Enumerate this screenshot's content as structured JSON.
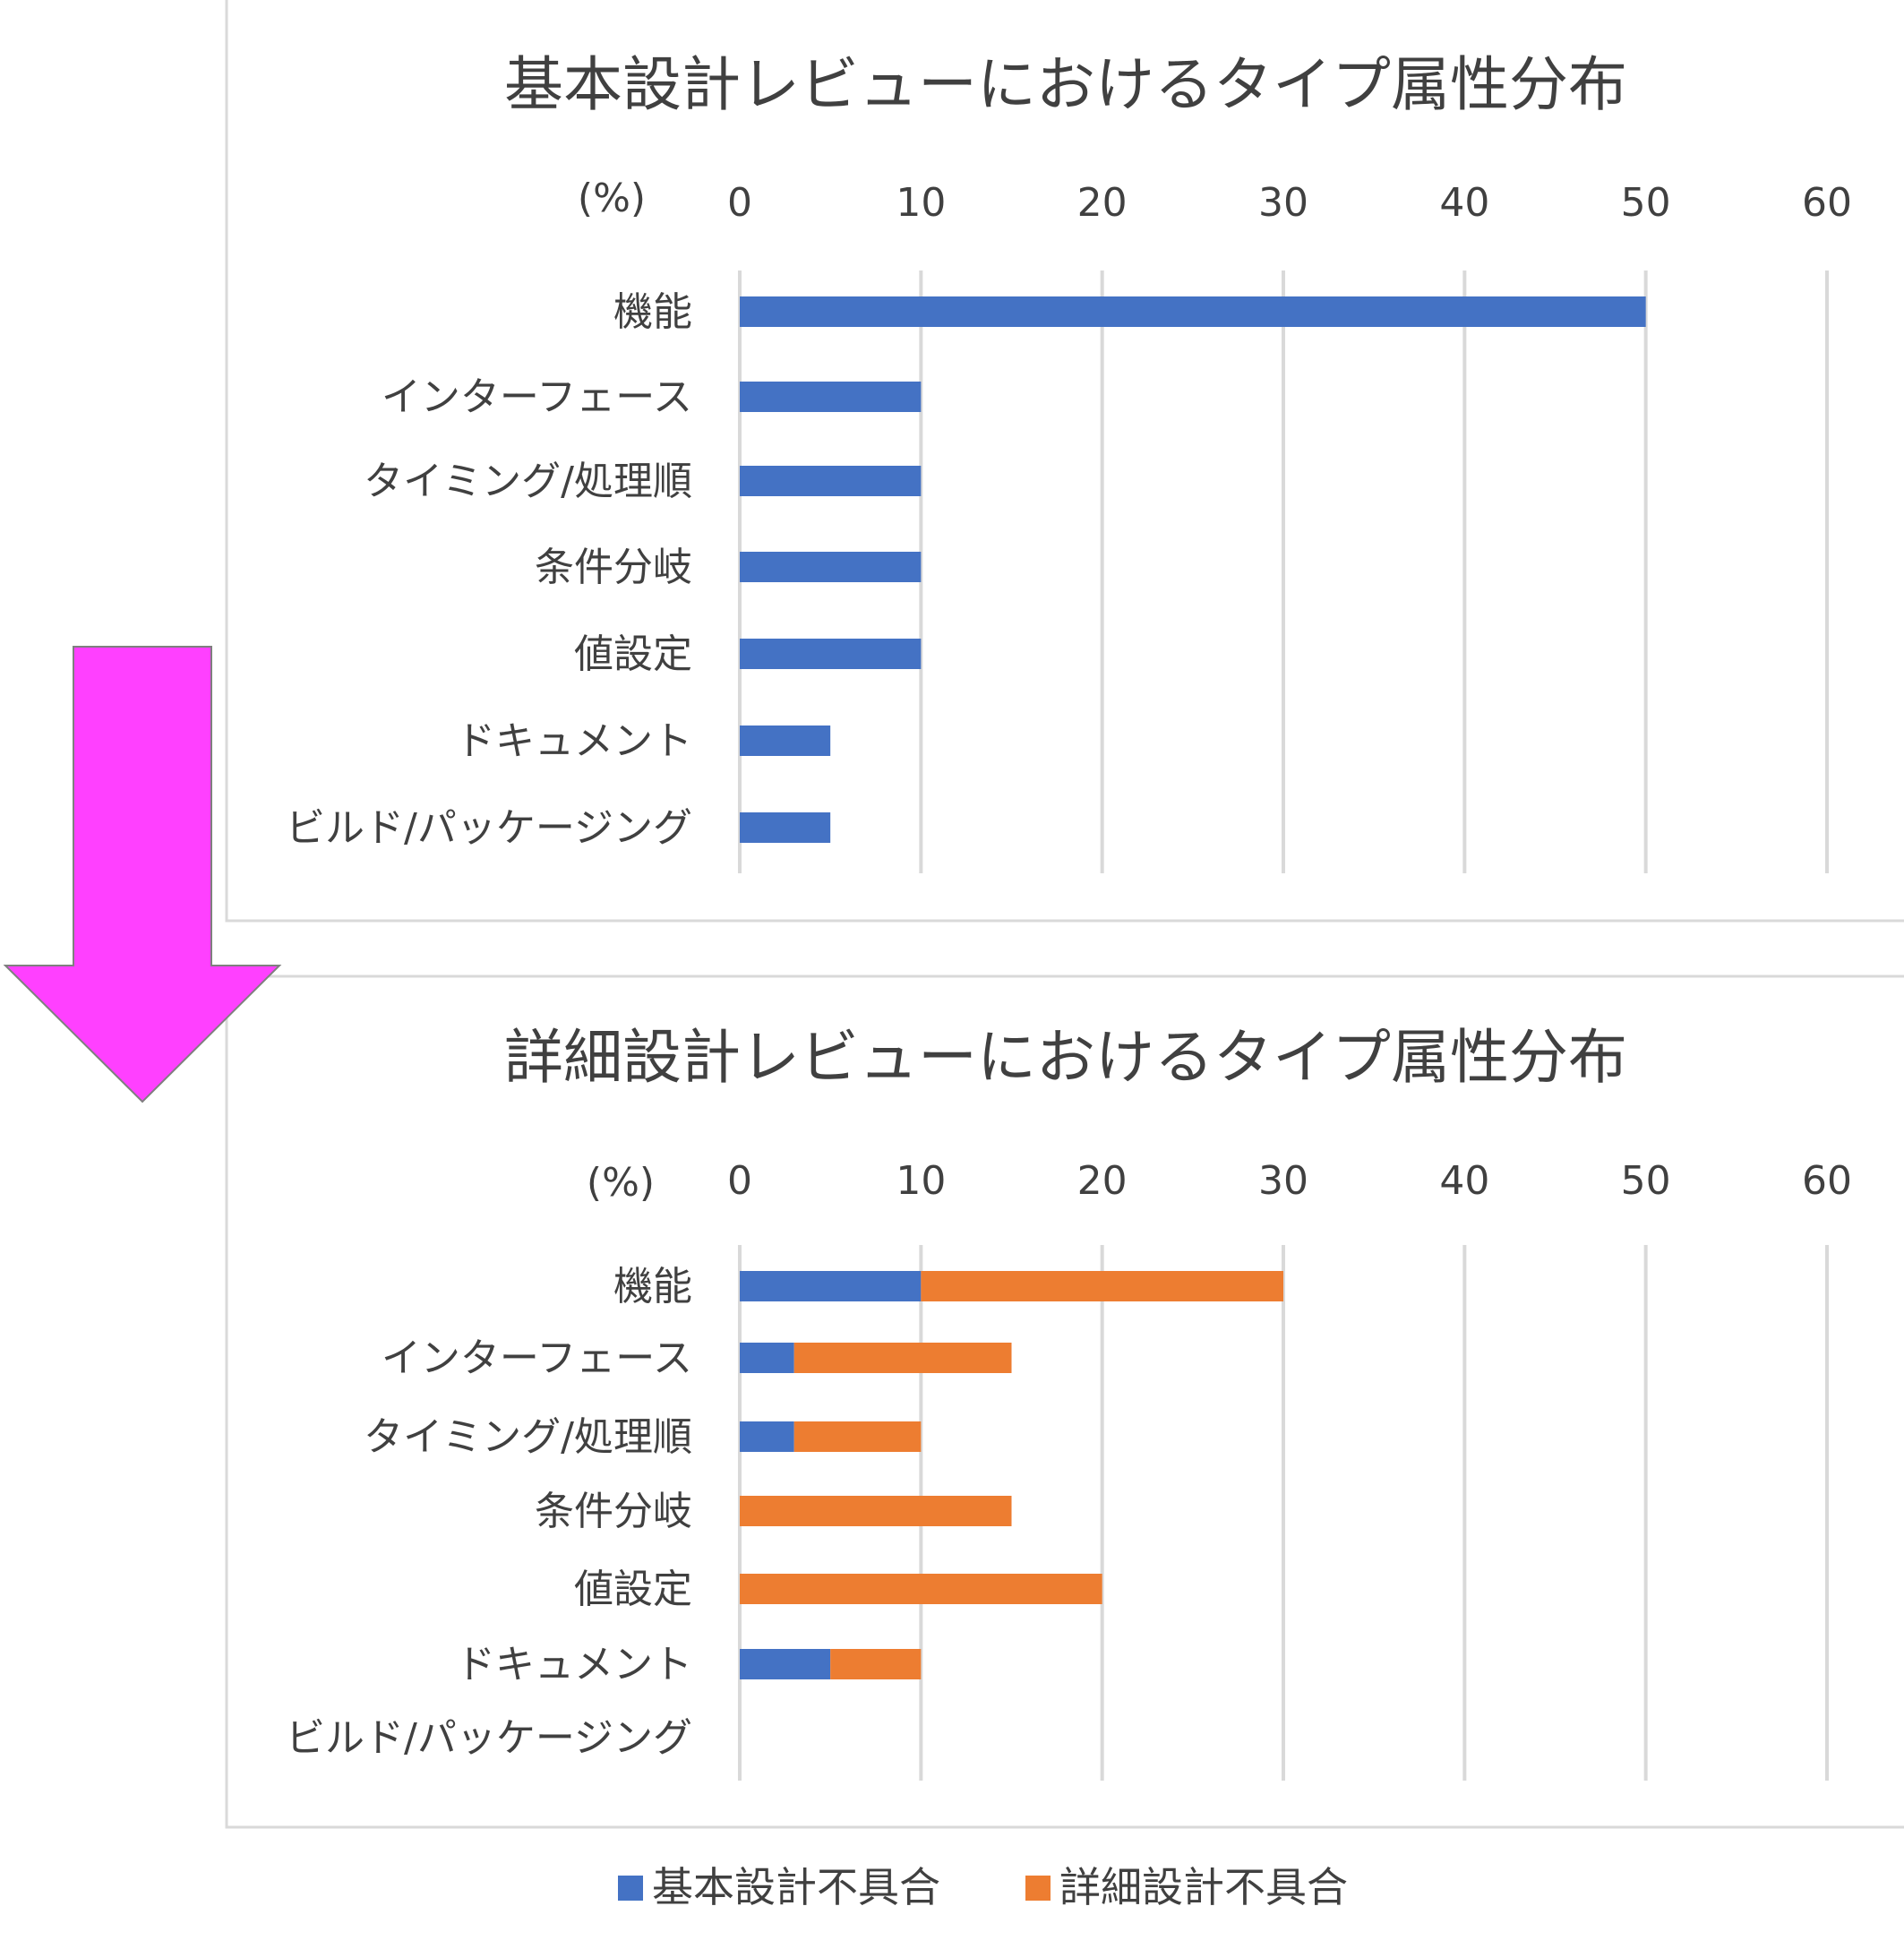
{
  "colors": {
    "basic": "#4472C4",
    "detail": "#ED7D31",
    "arrow": "#FF40FF",
    "grid": "#D9D9D9",
    "frame": "#D9D9D9",
    "text": "#404040"
  },
  "legend": {
    "basic_label": "基本設計不具合",
    "detail_label": "詳細設計不具合"
  },
  "chart_data": [
    {
      "type": "bar",
      "orientation": "horizontal",
      "stacked": true,
      "title": "基本設計レビューにおけるタイプ属性分布",
      "unit": "(%)",
      "xlim": [
        0,
        60
      ],
      "xticks": [
        "0",
        "10",
        "20",
        "30",
        "40",
        "50",
        "60"
      ],
      "grid": true,
      "categories": [
        "機能",
        "インターフェース",
        "タイミング/処理順",
        "条件分岐",
        "値設定",
        "ドキュメント",
        "ビルド/パッケージング"
      ],
      "series": [
        {
          "name": "基本設計不具合",
          "values": [
            50,
            10,
            10,
            10,
            10,
            5,
            5
          ]
        }
      ]
    },
    {
      "type": "bar",
      "orientation": "horizontal",
      "stacked": true,
      "title": "詳細設計レビューにおけるタイプ属性分布",
      "unit": "(%)",
      "xlim": [
        0,
        60
      ],
      "xticks": [
        "0",
        "10",
        "20",
        "30",
        "40",
        "50",
        "60"
      ],
      "grid": true,
      "categories": [
        "機能",
        "インターフェース",
        "タイミング/処理順",
        "条件分岐",
        "値設定",
        "ドキュメント",
        "ビルド/パッケージング"
      ],
      "series": [
        {
          "name": "基本設計不具合",
          "values": [
            10,
            3,
            3,
            0,
            0,
            5,
            0
          ]
        },
        {
          "name": "詳細設計不具合",
          "values": [
            20,
            12,
            7,
            15,
            20,
            5,
            0
          ]
        }
      ]
    }
  ]
}
